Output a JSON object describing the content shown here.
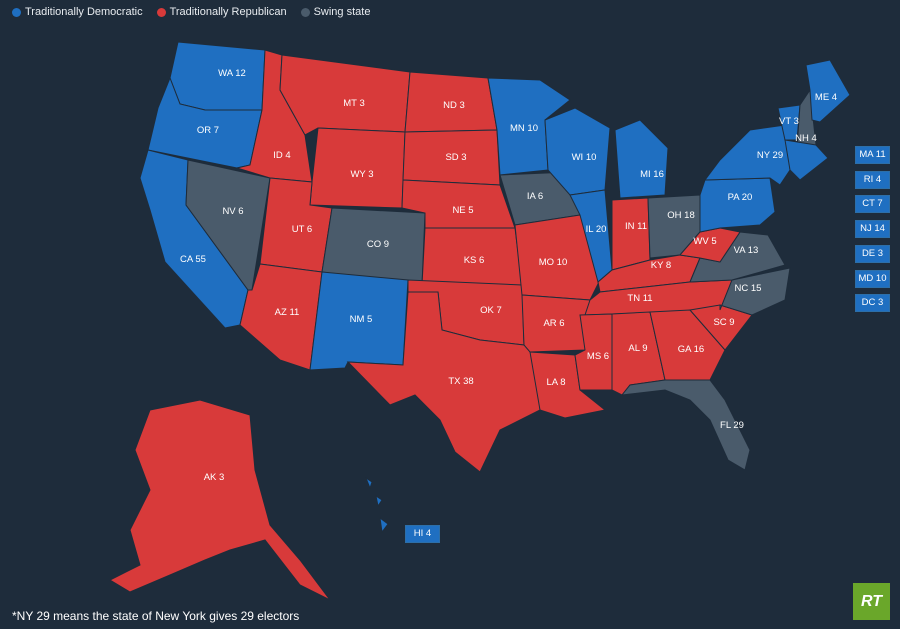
{
  "colors": {
    "democratic": "#1f6fc1",
    "republican": "#d83a3a",
    "swing": "#4a5b6b"
  },
  "legend": [
    {
      "label": "Traditionally Democratic",
      "category": "democratic"
    },
    {
      "label": "Traditionally Republican",
      "category": "republican"
    },
    {
      "label": "Swing state",
      "category": "swing"
    }
  ],
  "states": [
    {
      "id": "WA",
      "label": "WA 12",
      "category": "democratic"
    },
    {
      "id": "OR",
      "label": "OR 7",
      "category": "democratic"
    },
    {
      "id": "CA",
      "label": "CA 55",
      "category": "democratic"
    },
    {
      "id": "NV",
      "label": "NV 6",
      "category": "swing"
    },
    {
      "id": "ID",
      "label": "ID 4",
      "category": "republican"
    },
    {
      "id": "MT",
      "label": "MT 3",
      "category": "republican"
    },
    {
      "id": "WY",
      "label": "WY 3",
      "category": "republican"
    },
    {
      "id": "UT",
      "label": "UT 6",
      "category": "republican"
    },
    {
      "id": "AZ",
      "label": "AZ 11",
      "category": "republican"
    },
    {
      "id": "CO",
      "label": "CO 9",
      "category": "swing"
    },
    {
      "id": "NM",
      "label": "NM 5",
      "category": "democratic"
    },
    {
      "id": "ND",
      "label": "ND 3",
      "category": "republican"
    },
    {
      "id": "SD",
      "label": "SD 3",
      "category": "republican"
    },
    {
      "id": "NE",
      "label": "NE 5",
      "category": "republican"
    },
    {
      "id": "KS",
      "label": "KS 6",
      "category": "republican"
    },
    {
      "id": "OK",
      "label": "OK 7",
      "category": "republican"
    },
    {
      "id": "TX",
      "label": "TX 38",
      "category": "republican"
    },
    {
      "id": "MN",
      "label": "MN 10",
      "category": "democratic"
    },
    {
      "id": "IA",
      "label": "IA 6",
      "category": "swing"
    },
    {
      "id": "MO",
      "label": "MO 10",
      "category": "republican"
    },
    {
      "id": "AR",
      "label": "AR 6",
      "category": "republican"
    },
    {
      "id": "LA",
      "label": "LA 8",
      "category": "republican"
    },
    {
      "id": "WI",
      "label": "WI 10",
      "category": "democratic"
    },
    {
      "id": "IL",
      "label": "IL 20",
      "category": "democratic"
    },
    {
      "id": "MI",
      "label": "MI 16",
      "category": "democratic"
    },
    {
      "id": "IN",
      "label": "IN 11",
      "category": "republican"
    },
    {
      "id": "OH",
      "label": "OH 18",
      "category": "swing"
    },
    {
      "id": "KY",
      "label": "KY 8",
      "category": "republican"
    },
    {
      "id": "TN",
      "label": "TN 11",
      "category": "republican"
    },
    {
      "id": "MS",
      "label": "MS 6",
      "category": "republican"
    },
    {
      "id": "AL",
      "label": "AL 9",
      "category": "republican"
    },
    {
      "id": "GA",
      "label": "GA 16",
      "category": "republican"
    },
    {
      "id": "FL",
      "label": "FL 29",
      "category": "swing"
    },
    {
      "id": "SC",
      "label": "SC 9",
      "category": "republican"
    },
    {
      "id": "NC",
      "label": "NC 15",
      "category": "swing"
    },
    {
      "id": "VA",
      "label": "VA 13",
      "category": "swing"
    },
    {
      "id": "WV",
      "label": "WV 5",
      "category": "republican"
    },
    {
      "id": "PA",
      "label": "PA 20",
      "category": "democratic"
    },
    {
      "id": "NY",
      "label": "NY 29",
      "category": "democratic"
    },
    {
      "id": "VT",
      "label": "VT 3",
      "category": "democratic"
    },
    {
      "id": "NH",
      "label": "NH 4",
      "category": "swing"
    },
    {
      "id": "ME",
      "label": "ME 4",
      "category": "democratic"
    },
    {
      "id": "AK",
      "label": "AK 3",
      "category": "republican"
    },
    {
      "id": "HI",
      "label": "HI 4",
      "category": "democratic"
    }
  ],
  "side_states": [
    {
      "id": "MA",
      "label": "MA 11",
      "category": "democratic"
    },
    {
      "id": "RI",
      "label": "RI 4",
      "category": "democratic"
    },
    {
      "id": "CT",
      "label": "CT 7",
      "category": "democratic"
    },
    {
      "id": "NJ",
      "label": "NJ 14",
      "category": "democratic"
    },
    {
      "id": "DE",
      "label": "DE 3",
      "category": "democratic"
    },
    {
      "id": "MD",
      "label": "MD 10",
      "category": "democratic"
    },
    {
      "id": "DC",
      "label": "DC 3",
      "category": "democratic"
    }
  ],
  "footnote": "*NY 29 means the state of New York gives 29 electors",
  "logo_text": "RT"
}
